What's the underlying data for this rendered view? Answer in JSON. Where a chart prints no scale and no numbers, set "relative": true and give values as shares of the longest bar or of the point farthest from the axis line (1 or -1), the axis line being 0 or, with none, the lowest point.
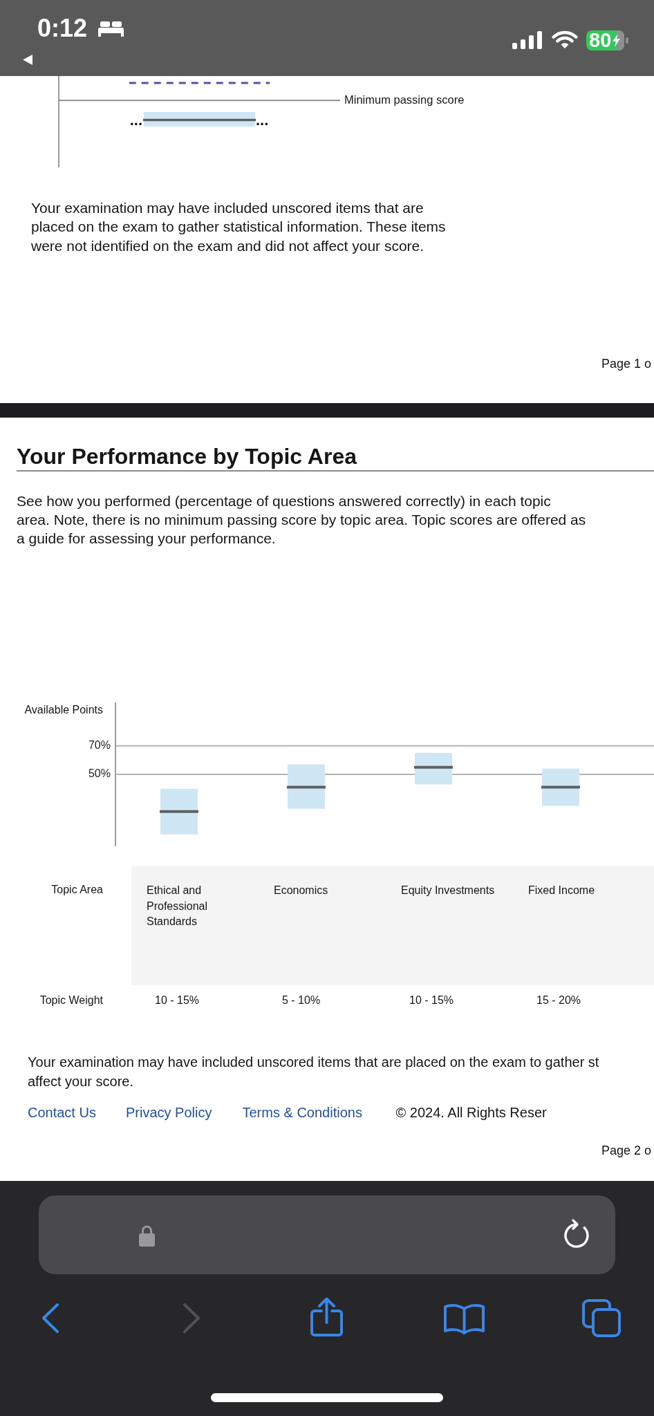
{
  "chart_data": [
    {
      "type": "bar",
      "relative": true,
      "stacked": true,
      "categories": [
        null
      ],
      "series": [
        {
          "color": "#cfe6f5",
          "values": [
            0.45
          ]
        },
        {
          "color": "#cfe6f5",
          "values": [
            0.55
          ]
        }
      ],
      "ref_lines": [
        {
          "axis": "y",
          "value": 3,
          "color": "#5a4fa3",
          "line_style": "dashed"
        },
        {
          "axis": "y",
          "value": 1.8,
          "label": "Minimum passing score",
          "color": "#8c8c8c"
        },
        {
          "axis": "y",
          "value": 0.45,
          "color": "#5f6062"
        }
      ],
      "annotations": [
        "0:12",
        "80",
        "...",
        "...",
        "Your examination may have included unscored items that are\nplaced on the exam to gather statistical information. These items\nwere not identified on the exam and did not affect your score.",
        "Page 1 o"
      ]
    },
    {
      "type": "box",
      "title": "Your Performance by Topic Area",
      "subtitle": "See how you performed (percentage of questions answered correctly) in each topic\narea. Note, there is no minimum passing score by topic area. Topic scores are offered as\na guide for assessing your performance.",
      "xlabel": "Topic Area",
      "ylabel": "Available Points",
      "categories": [
        "Ethical and Professional Standards",
        "Economics",
        "Equity Investments",
        "Fixed Income"
      ],
      "boxes": [
        {
          "low": 8,
          "q1": 8,
          "median": 24,
          "q3": 40,
          "high": 40
        },
        {
          "low": 26,
          "q1": 26,
          "median": 41,
          "q3": 57,
          "high": 57
        },
        {
          "low": 43,
          "q1": 43,
          "median": 55,
          "q3": 65,
          "high": 65
        },
        {
          "low": 28,
          "q1": 28,
          "median": 41,
          "q3": 54,
          "high": 54
        }
      ],
      "color": "#cfe6f5",
      "ylim": [
        0,
        100
      ],
      "yticks": [
        {
          "value": 70,
          "label": "70%"
        },
        {
          "value": 50,
          "label": "50%"
        }
      ],
      "grid": "y",
      "annotations": [
        "Topic Weight",
        "10 - 15%",
        "5 - 10%",
        "10 - 15%",
        "15 - 20%",
        "Your examination may have included unscored items that are placed on the exam to gather st\naffect your score.",
        "Contact Us",
        "Privacy Policy",
        "Terms & Conditions",
        "© 2024. All Rights Reser",
        "Page 2 o"
      ]
    }
  ]
}
